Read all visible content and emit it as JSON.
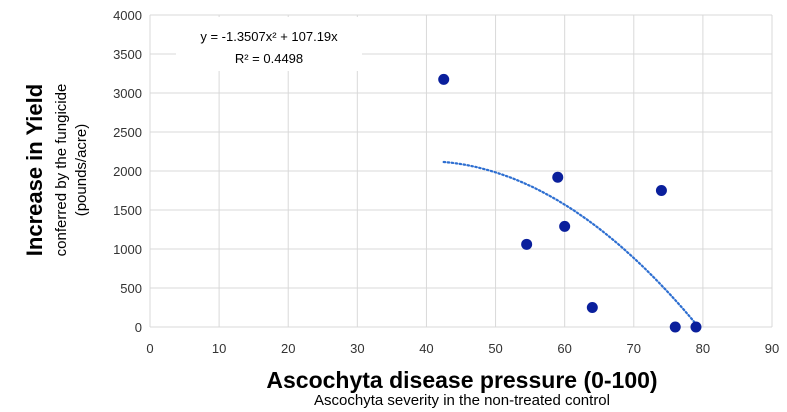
{
  "chart_data": {
    "type": "scatter",
    "xlabel": "Ascochyta disease pressure (0-100)",
    "xlabel_sub": "Ascochyta severity in the non-treated control",
    "ylabel": "Increase in Yield",
    "ylabel_sub_1": "conferred by the fungicide",
    "ylabel_sub_2": "(pounds/acre)",
    "xlim": [
      0,
      90
    ],
    "ylim": [
      0,
      4000
    ],
    "xticks": [
      0,
      10,
      20,
      30,
      40,
      50,
      60,
      70,
      80,
      90
    ],
    "yticks": [
      0,
      500,
      1000,
      1500,
      2000,
      2500,
      3000,
      3500,
      4000
    ],
    "grid": true,
    "point_color": "#0a1f9c",
    "trend_color": "#2e6fd1",
    "series": [
      {
        "points": [
          {
            "x": 42.5,
            "y": 3175
          },
          {
            "x": 54.5,
            "y": 1060
          },
          {
            "x": 59,
            "y": 1920
          },
          {
            "x": 60,
            "y": 1290
          },
          {
            "x": 64,
            "y": 250
          },
          {
            "x": 74,
            "y": 1750
          },
          {
            "x": 76,
            "y": 0
          },
          {
            "x": 79,
            "y": 0
          }
        ]
      }
    ],
    "trendline": {
      "type": "polynomial",
      "a": -1.3507,
      "b": 107.19,
      "x_range": [
        42.5,
        79
      ],
      "equation": "y = -1.3507x² + 107.19x",
      "r_squared": "R² = 0.4498"
    }
  }
}
